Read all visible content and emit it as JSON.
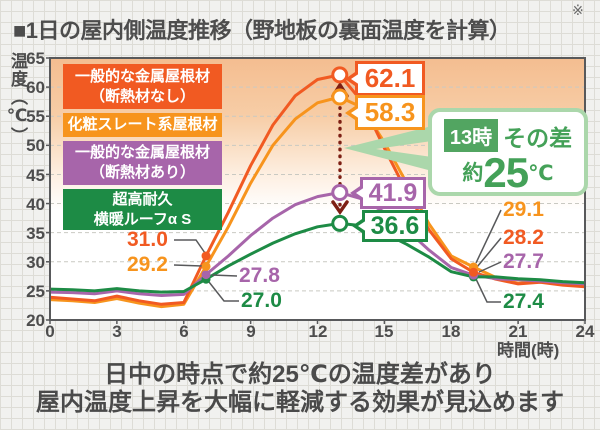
{
  "title": {
    "text": "■1日の屋内側温度推移（野地板の裏面温度を計算）",
    "note_mark": "※"
  },
  "axes": {
    "y_title": "温度（℃）",
    "x_title": "時間(時)",
    "y_ticks": [
      "65",
      "60",
      "55",
      "50",
      "45",
      "40",
      "35",
      "30",
      "25",
      "20"
    ],
    "x_ticks": [
      "0",
      "3",
      "6",
      "9",
      "12",
      "15",
      "18",
      "21",
      "24"
    ]
  },
  "legend": [
    {
      "line1": "一般的な金属屋根材",
      "line2": "（断熱材なし）",
      "color": "#f15a22"
    },
    {
      "line1": "化粧スレート系屋根材",
      "line2": "",
      "color": "#f7941d"
    },
    {
      "line1": "一般的な金属屋根材",
      "line2": "（断熱材あり）",
      "color": "#a765aa"
    },
    {
      "line1": "超高耐久",
      "line2": "横暖ルーフα S",
      "color": "#1d8b45"
    }
  ],
  "labels": {
    "peak": [
      "62.1",
      "58.3",
      "41.9",
      "36.6"
    ],
    "morning": [
      "31.0",
      "29.2",
      "27.8",
      "27.0"
    ],
    "evening": [
      "29.1",
      "28.2",
      "27.7",
      "27.4"
    ]
  },
  "callout": {
    "time_badge": "13時",
    "diff_label": "その差",
    "approx": "約",
    "value": "25",
    "unit": "℃"
  },
  "caption": {
    "line1": "日中の時点で約25℃の温度差があり",
    "line2": "屋内温度上昇を大幅に軽減する効果が見込めます"
  },
  "chart_data": {
    "type": "line",
    "title": "1日の屋内側温度推移（野地板の裏面温度を計算）",
    "xlabel": "時間(時)",
    "ylabel": "温度（℃）",
    "xlim": [
      0,
      24
    ],
    "ylim": [
      20,
      65
    ],
    "x": [
      0,
      1,
      2,
      3,
      4,
      5,
      6,
      7,
      8,
      9,
      10,
      11,
      12,
      13,
      14,
      15,
      16,
      17,
      18,
      19,
      20,
      21,
      22,
      23,
      24
    ],
    "grid": "horizontal-dashed",
    "legend_position": "upper-left",
    "draw_order": [
      1,
      0,
      2,
      3
    ],
    "marker_dot_hours": [
      7,
      19
    ],
    "marker_ring_hour": 13,
    "series": [
      {
        "name": "一般的な金属屋根材（断熱材なし）",
        "color": "#f15a22",
        "values": [
          23.9,
          23.6,
          23.3,
          24.1,
          23.3,
          22.7,
          23.0,
          31.0,
          38.5,
          46.5,
          53.5,
          58.5,
          61.3,
          62.1,
          57.5,
          49.5,
          42.0,
          35.5,
          30.5,
          28.2,
          27.0,
          26.2,
          26.5,
          26.0,
          25.7
        ]
      },
      {
        "name": "化粧スレート系屋根材",
        "color": "#f7941d",
        "values": [
          23.5,
          23.3,
          23.0,
          23.7,
          22.9,
          22.3,
          22.7,
          29.2,
          36.0,
          43.5,
          50.0,
          54.5,
          57.3,
          58.3,
          56.5,
          50.5,
          43.5,
          36.5,
          31.0,
          29.1,
          27.3,
          26.3,
          26.6,
          26.1,
          25.8
        ]
      },
      {
        "name": "一般的な金属屋根材（断熱材あり）",
        "color": "#a765aa",
        "values": [
          24.8,
          24.7,
          24.5,
          25.0,
          24.5,
          24.2,
          24.4,
          27.8,
          31.0,
          34.5,
          37.5,
          39.8,
          41.2,
          41.9,
          40.8,
          38.5,
          35.5,
          32.0,
          29.0,
          27.7,
          27.1,
          26.9,
          26.7,
          26.4,
          26.2
        ]
      },
      {
        "name": "超高耐久 横暖ルーフα S",
        "color": "#1d8b45",
        "values": [
          25.3,
          25.2,
          25.0,
          25.4,
          25.0,
          24.8,
          24.9,
          27.0,
          29.3,
          31.3,
          33.2,
          34.8,
          36.0,
          36.6,
          36.2,
          34.9,
          33.0,
          30.8,
          28.3,
          27.4,
          27.4,
          27.1,
          26.9,
          26.6,
          26.4
        ]
      }
    ],
    "labeled_points": {
      "hour_7": {
        "series_values": [
          31.0,
          29.2,
          27.8,
          27.0
        ]
      },
      "hour_13": {
        "series_values": [
          62.1,
          58.3,
          41.9,
          36.6
        ]
      },
      "hour_19": {
        "series_values": [
          28.2,
          29.1,
          27.7,
          27.4
        ]
      }
    },
    "annotation": {
      "text": "13時 その差 約25℃",
      "difference_arrow": {
        "hour": 13,
        "from": 36.6,
        "to": 62.1,
        "color": "#7d1f14"
      }
    }
  }
}
